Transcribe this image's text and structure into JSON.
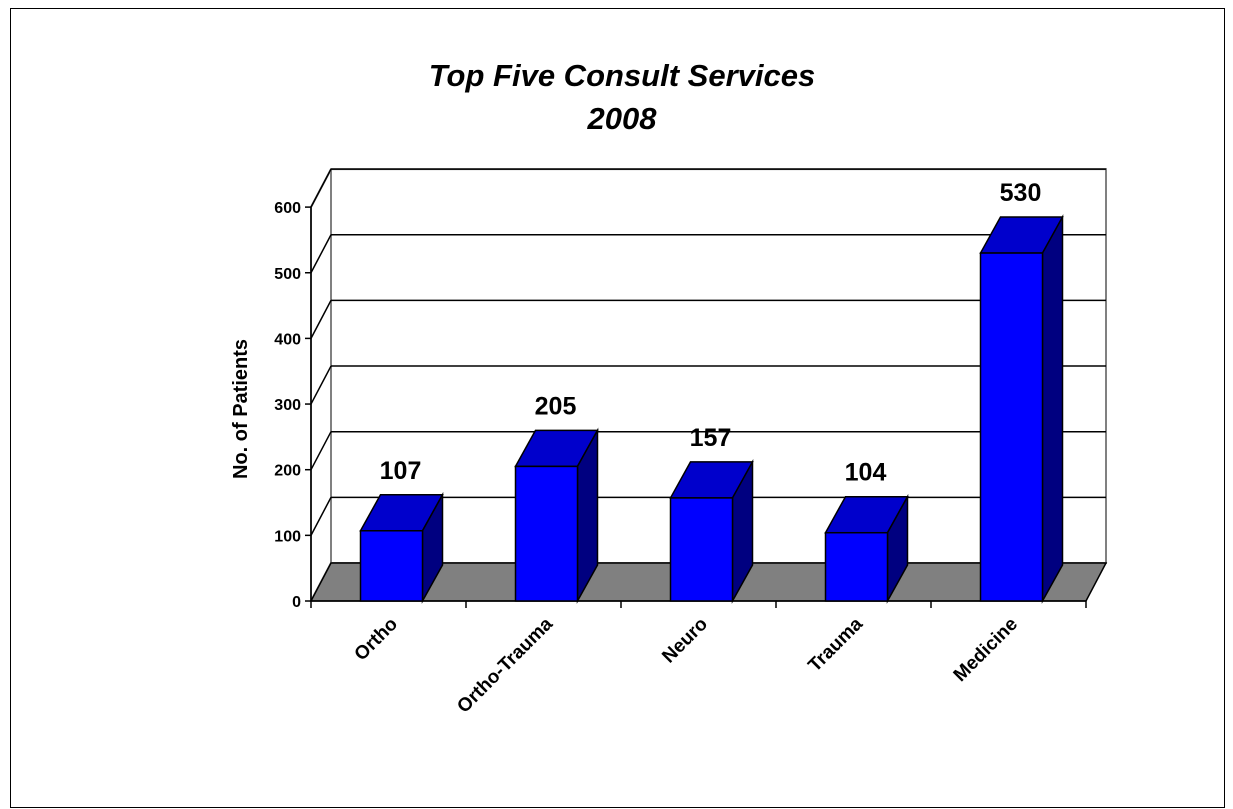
{
  "chart_data": {
    "type": "bar",
    "title": [
      "Top Five Consult Services",
      "2008"
    ],
    "xlabel": "",
    "ylabel": "No. of Patients",
    "categories": [
      "Ortho",
      "Ortho-Trauma",
      "Neuro",
      "Trauma",
      "Medicine"
    ],
    "values": [
      107,
      205,
      157,
      104,
      530
    ],
    "data_labels": [
      "107",
      "205",
      "157",
      "104",
      "530"
    ],
    "ylim": [
      0,
      600
    ],
    "yticks": [
      0,
      100,
      200,
      300,
      400,
      500,
      600
    ],
    "ytick_labels": [
      "0",
      "100",
      "200",
      "300",
      "400",
      "500",
      "600"
    ],
    "grid": true,
    "legend": "none",
    "style": "3d-column"
  },
  "colors": {
    "bar_front": "#0000FF",
    "bar_top": "#0000CC",
    "bar_side": "#000080",
    "floor": "#808080",
    "walls": "#FFFFFF",
    "frame_line": "#808080",
    "grid": "#000000"
  }
}
